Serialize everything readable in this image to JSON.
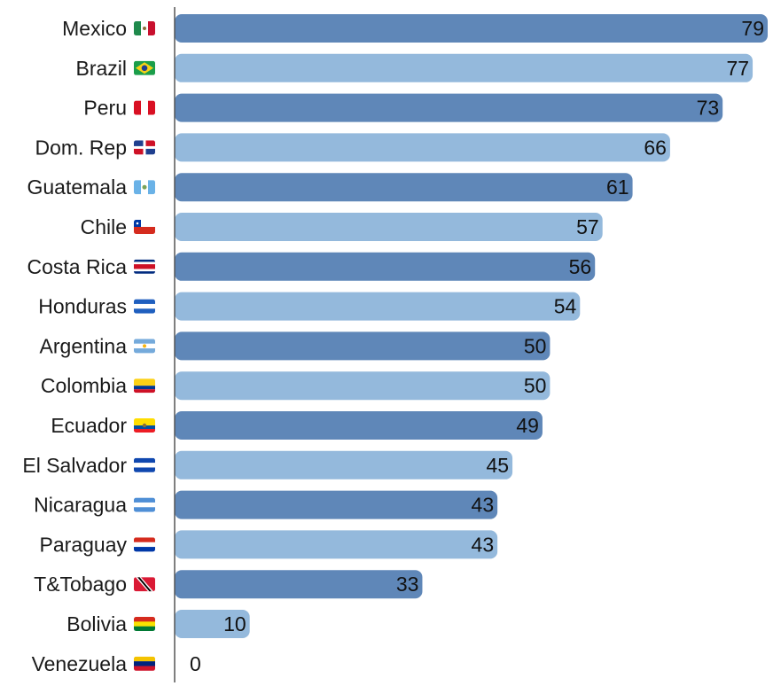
{
  "chart_data": {
    "type": "bar",
    "orientation": "horizontal",
    "categories": [
      "Mexico",
      "Brazil",
      "Peru",
      "Dom. Rep",
      "Guatemala",
      "Chile",
      "Costa Rica",
      "Honduras",
      "Argentina",
      "Colombia",
      "Ecuador",
      "El Salvador",
      "Nicaragua",
      "Paraguay",
      "T&Tobago",
      "Bolivia",
      "Venezuela"
    ],
    "values": [
      79,
      77,
      73,
      66,
      61,
      57,
      56,
      54,
      50,
      50,
      49,
      45,
      43,
      43,
      33,
      10,
      0
    ],
    "xlim": [
      0,
      79
    ],
    "grid": false,
    "legend": "none",
    "colors": {
      "dark": "#5f87b8",
      "light": "#94b9dc",
      "axis": "#555555"
    }
  }
}
